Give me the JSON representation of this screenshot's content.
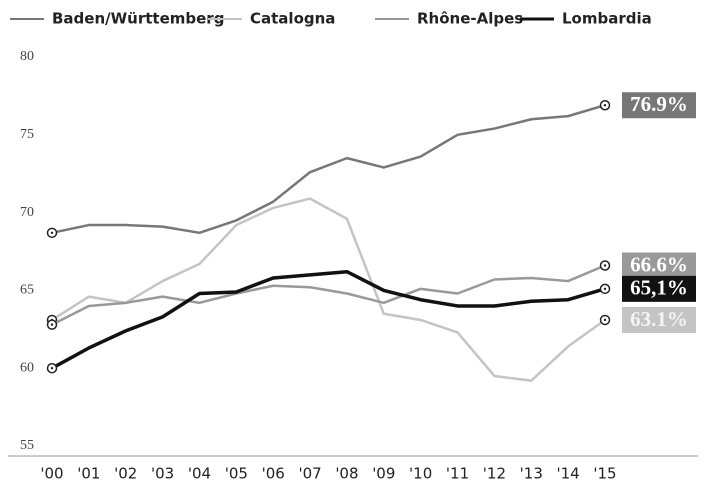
{
  "chart_data": {
    "type": "line",
    "categories": [
      "'00",
      "'01",
      "'02",
      "'03",
      "'04",
      "'05",
      "'06",
      "'07",
      "'08",
      "'09",
      "'10",
      "'11",
      "'12",
      "'13",
      "'14",
      "'15"
    ],
    "series": [
      {
        "name": "Baden/Württemberg",
        "color": "#777777",
        "values": [
          68.7,
          69.2,
          69.2,
          69.1,
          68.7,
          69.5,
          70.7,
          72.6,
          73.5,
          72.9,
          73.6,
          75.0,
          75.4,
          76.0,
          76.2,
          76.9
        ],
        "value_labels": [
          null,
          null,
          null,
          null,
          null,
          null,
          null,
          null,
          null,
          null,
          null,
          null,
          null,
          null,
          null,
          "76.9%"
        ]
      },
      {
        "name": "Catalogna",
        "color": "#c4c4c4",
        "values": [
          63.1,
          64.6,
          64.2,
          65.6,
          66.7,
          69.2,
          70.3,
          70.9,
          69.6,
          63.5,
          63.1,
          62.3,
          59.5,
          59.2,
          61.4,
          63.1
        ],
        "value_labels": [
          null,
          null,
          null,
          null,
          null,
          null,
          null,
          null,
          null,
          null,
          null,
          null,
          null,
          null,
          null,
          "63.1%"
        ]
      },
      {
        "name": "Rhône-Alpes",
        "color": "#999999",
        "values": [
          62.8,
          64.0,
          64.2,
          64.6,
          64.2,
          64.8,
          65.3,
          65.2,
          64.8,
          64.2,
          65.1,
          64.8,
          65.7,
          65.8,
          65.6,
          66.6
        ],
        "value_labels": [
          null,
          null,
          null,
          null,
          null,
          null,
          null,
          null,
          null,
          null,
          null,
          null,
          null,
          null,
          null,
          "66.6%"
        ]
      },
      {
        "name": "Lombardia",
        "color": "#111111",
        "values": [
          60.0,
          61.3,
          62.4,
          63.3,
          64.8,
          64.9,
          65.8,
          66.0,
          66.2,
          65.0,
          64.4,
          64.0,
          64.0,
          64.3,
          64.4,
          65.1
        ],
        "value_labels": [
          null,
          null,
          null,
          null,
          null,
          null,
          null,
          null,
          null,
          null,
          null,
          null,
          null,
          null,
          null,
          "65,1%"
        ]
      }
    ],
    "ylim": [
      55,
      80
    ],
    "yticks": [
      55,
      60,
      65,
      70,
      75,
      80
    ]
  }
}
